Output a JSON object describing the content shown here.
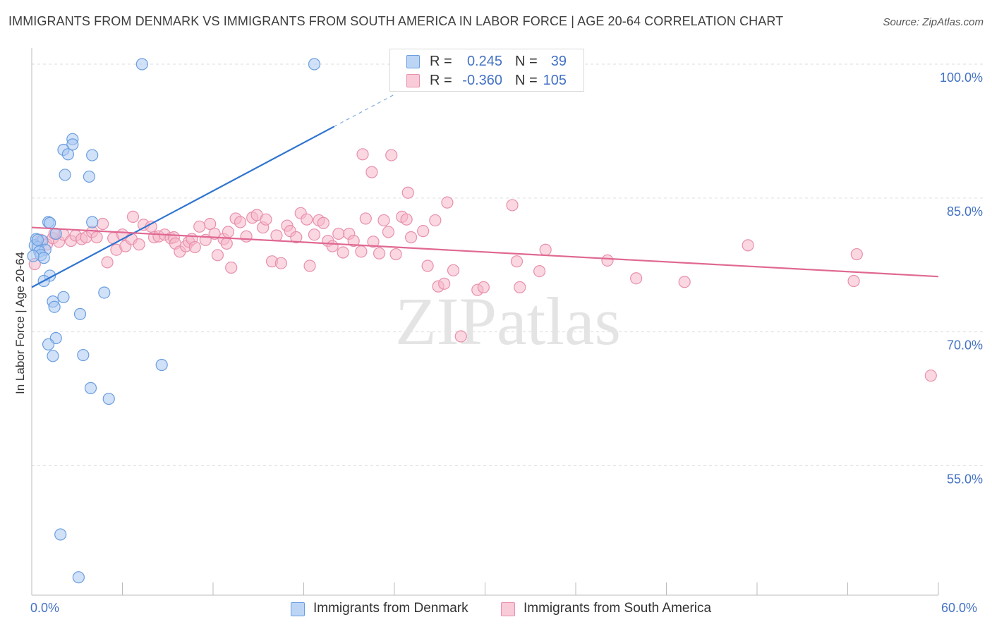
{
  "title": "IMMIGRANTS FROM DENMARK VS IMMIGRANTS FROM SOUTH AMERICA IN LABOR FORCE | AGE 20-64 CORRELATION CHART",
  "source": "Source: ZipAtlas.com",
  "watermark": "ZIPatlas",
  "legend_top": {
    "rows": [
      {
        "r_label": "R =",
        "r_value": "0.245",
        "n_label": "N =",
        "n_value": "39"
      },
      {
        "r_label": "R =",
        "r_value": "-0.360",
        "n_label": "N =",
        "n_value": "105"
      }
    ]
  },
  "legend_bottom": {
    "items": [
      "Immigrants from Denmark",
      "Immigrants from South America"
    ]
  },
  "colors": {
    "blue_fill": "#a9c8f2",
    "blue_stroke": "#6b9ee0",
    "blue_line": "#2e74d0",
    "pink_fill": "#f5b6c9",
    "pink_stroke": "#e890ac",
    "pink_line": "#e06892",
    "tick_text": "#4472c4",
    "grid": "#dddddd"
  },
  "chart_data": {
    "type": "scatter",
    "title": "IMMIGRANTS FROM DENMARK VS IMMIGRANTS FROM SOUTH AMERICA IN LABOR FORCE | AGE 20-64 CORRELATION CHART",
    "xlabel": "",
    "ylabel": "In Labor Force | Age 20-64",
    "xlim": [
      0,
      60
    ],
    "ylim": [
      40.5,
      101.5
    ],
    "x_tick_labels": [
      "0.0%",
      "60.0%"
    ],
    "y_ticks": [
      55,
      70,
      85,
      100
    ],
    "y_tick_labels": [
      "55.0%",
      "70.0%",
      "85.0%",
      "100.0%"
    ],
    "grid": "horizontal dashed",
    "legend_position": "top-center",
    "series": [
      {
        "name": "Immigrants from Denmark",
        "color": "#a9c8f2",
        "stats": {
          "R": 0.245,
          "N": 39
        },
        "trend": {
          "x": [
            0.0,
            20.0
          ],
          "y": [
            75.0,
            93.0
          ],
          "dashed_to": [
            24.0,
            96.6
          ]
        },
        "points": [
          [
            7.3,
            100.0
          ],
          [
            18.7,
            100.0
          ],
          [
            2.7,
            91.6
          ],
          [
            2.7,
            91.0
          ],
          [
            2.1,
            90.4
          ],
          [
            2.4,
            89.9
          ],
          [
            4.0,
            89.8
          ],
          [
            2.2,
            87.6
          ],
          [
            3.8,
            87.4
          ],
          [
            1.1,
            82.3
          ],
          [
            1.2,
            82.2
          ],
          [
            4.0,
            82.3
          ],
          [
            1.6,
            81.0
          ],
          [
            0.3,
            80.4
          ],
          [
            0.7,
            80.2
          ],
          [
            0.2,
            79.7
          ],
          [
            0.4,
            79.5
          ],
          [
            0.9,
            79.2
          ],
          [
            0.5,
            79.0
          ],
          [
            0.6,
            78.6
          ],
          [
            0.8,
            78.3
          ],
          [
            1.2,
            76.3
          ],
          [
            0.8,
            75.7
          ],
          [
            4.8,
            74.4
          ],
          [
            2.1,
            73.9
          ],
          [
            1.4,
            73.4
          ],
          [
            1.5,
            72.8
          ],
          [
            3.2,
            72.0
          ],
          [
            1.6,
            69.3
          ],
          [
            1.1,
            68.6
          ],
          [
            1.4,
            67.3
          ],
          [
            3.4,
            67.4
          ],
          [
            8.6,
            66.3
          ],
          [
            3.9,
            63.7
          ],
          [
            5.1,
            62.5
          ],
          [
            1.9,
            47.3
          ],
          [
            3.1,
            42.5
          ],
          [
            0.1,
            78.5
          ],
          [
            0.4,
            80.3
          ]
        ]
      },
      {
        "name": "Immigrants from South America",
        "color": "#f5b6c9",
        "stats": {
          "R": -0.36,
          "N": 105
        },
        "trend": {
          "x": [
            0.0,
            60.0
          ],
          "y": [
            81.7,
            76.2
          ]
        },
        "points": [
          [
            0.2,
            77.6
          ],
          [
            0.6,
            80.3
          ],
          [
            1.0,
            79.8
          ],
          [
            1.4,
            80.5
          ],
          [
            1.8,
            80.1
          ],
          [
            2.1,
            80.9
          ],
          [
            2.6,
            80.2
          ],
          [
            2.9,
            80.8
          ],
          [
            3.3,
            80.4
          ],
          [
            3.6,
            80.6
          ],
          [
            4.0,
            81.2
          ],
          [
            4.3,
            80.6
          ],
          [
            4.7,
            82.1
          ],
          [
            5.0,
            77.8
          ],
          [
            5.4,
            80.5
          ],
          [
            5.6,
            79.2
          ],
          [
            6.0,
            80.9
          ],
          [
            6.2,
            79.6
          ],
          [
            6.6,
            80.4
          ],
          [
            6.7,
            82.9
          ],
          [
            7.1,
            79.8
          ],
          [
            7.4,
            82.0
          ],
          [
            7.9,
            81.8
          ],
          [
            8.1,
            80.6
          ],
          [
            8.4,
            80.7
          ],
          [
            8.8,
            80.9
          ],
          [
            9.2,
            80.5
          ],
          [
            9.4,
            80.6
          ],
          [
            9.5,
            79.9
          ],
          [
            9.8,
            79.0
          ],
          [
            10.2,
            79.6
          ],
          [
            10.4,
            80.1
          ],
          [
            10.6,
            80.4
          ],
          [
            10.8,
            79.5
          ],
          [
            11.1,
            81.8
          ],
          [
            11.5,
            80.3
          ],
          [
            11.8,
            82.1
          ],
          [
            12.1,
            81.0
          ],
          [
            12.3,
            78.6
          ],
          [
            12.7,
            80.4
          ],
          [
            13.0,
            81.2
          ],
          [
            13.2,
            77.2
          ],
          [
            13.5,
            82.7
          ],
          [
            13.8,
            82.3
          ],
          [
            14.2,
            80.7
          ],
          [
            14.6,
            82.8
          ],
          [
            14.9,
            83.1
          ],
          [
            15.3,
            81.7
          ],
          [
            15.5,
            82.6
          ],
          [
            15.9,
            77.9
          ],
          [
            16.2,
            80.8
          ],
          [
            16.5,
            77.7
          ],
          [
            16.9,
            81.9
          ],
          [
            17.1,
            81.3
          ],
          [
            17.5,
            80.6
          ],
          [
            17.8,
            83.3
          ],
          [
            18.2,
            82.6
          ],
          [
            18.4,
            77.4
          ],
          [
            18.7,
            80.9
          ],
          [
            19.0,
            82.5
          ],
          [
            19.3,
            82.2
          ],
          [
            19.6,
            80.2
          ],
          [
            19.9,
            79.6
          ],
          [
            20.3,
            81.0
          ],
          [
            20.6,
            78.9
          ],
          [
            21.0,
            81.0
          ],
          [
            21.3,
            80.2
          ],
          [
            21.8,
            79.0
          ],
          [
            22.1,
            82.7
          ],
          [
            22.6,
            80.1
          ],
          [
            23.0,
            78.8
          ],
          [
            23.3,
            82.5
          ],
          [
            23.6,
            81.2
          ],
          [
            24.1,
            78.7
          ],
          [
            24.5,
            82.9
          ],
          [
            24.8,
            82.6
          ],
          [
            25.1,
            80.6
          ],
          [
            25.9,
            81.3
          ],
          [
            26.2,
            77.4
          ],
          [
            26.7,
            82.5
          ],
          [
            26.9,
            75.1
          ],
          [
            27.3,
            75.4
          ],
          [
            27.5,
            84.5
          ],
          [
            27.9,
            76.9
          ],
          [
            28.4,
            69.5
          ],
          [
            29.5,
            74.7
          ],
          [
            29.9,
            75.0
          ],
          [
            21.9,
            89.9
          ],
          [
            22.5,
            87.9
          ],
          [
            23.8,
            89.8
          ],
          [
            24.9,
            85.6
          ],
          [
            31.8,
            84.2
          ],
          [
            32.1,
            77.9
          ],
          [
            32.3,
            75.0
          ],
          [
            34.0,
            79.2
          ],
          [
            33.6,
            76.8
          ],
          [
            38.1,
            78.0
          ],
          [
            40.0,
            76.0
          ],
          [
            43.2,
            75.6
          ],
          [
            47.4,
            79.7
          ],
          [
            54.4,
            75.7
          ],
          [
            54.6,
            78.7
          ],
          [
            59.5,
            65.1
          ],
          [
            1.5,
            81.0
          ],
          [
            12.9,
            79.9
          ]
        ]
      }
    ]
  }
}
